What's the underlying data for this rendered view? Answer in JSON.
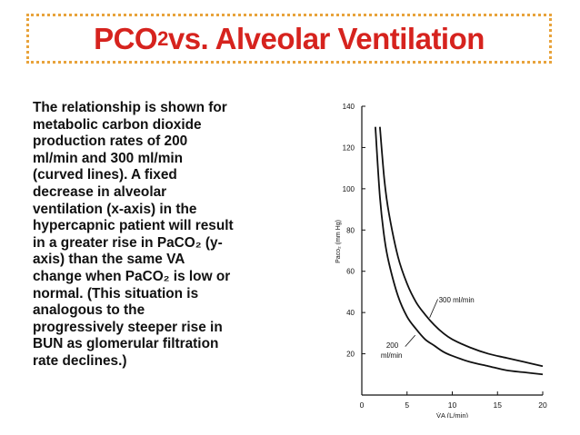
{
  "slide": {
    "title_main": "PCO",
    "title_sub": "2",
    "title_rest": " vs. Alveolar Ventilation",
    "body_text": [
      "The relationship is shown for",
      "metabolic carbon dioxide",
      "production rates of 200",
      "ml/min and 300 ml/min",
      "(curved lines).  A fixed",
      "decrease in alveolar",
      "ventilation (x-axis) in the",
      "hypercapnic patient will result",
      "in a greater rise in PaCO₂ (y-",
      "axis) than the same VA",
      "change when PaCO₂ is low or",
      "normal.  (This situation is",
      "analogous to the",
      "progressively steeper rise in",
      "BUN as glomerular filtration",
      "rate declines.)"
    ]
  },
  "colors": {
    "title": "#d6231e",
    "frame": "#e8a33b",
    "text": "#111111"
  },
  "chart_data": {
    "type": "line",
    "xlabel": "V̇A (L/min)",
    "ylabel": "Paco₂ (mm Hg)",
    "xlim": [
      0,
      20
    ],
    "ylim": [
      0,
      140
    ],
    "xticks": [
      0,
      5,
      10,
      15,
      20
    ],
    "yticks": [
      20,
      40,
      60,
      80,
      100,
      120,
      140
    ],
    "grid": false,
    "series": [
      {
        "name": "300 ml/min",
        "x": [
          2.0,
          2.5,
          3,
          4,
          5,
          6,
          7,
          8,
          9,
          10,
          12,
          14,
          16,
          18,
          20
        ],
        "y": [
          130,
          104,
          88,
          67,
          54,
          45,
          39,
          34,
          30,
          27,
          23,
          20,
          18,
          16,
          14
        ]
      },
      {
        "name": "200\nml/min",
        "x": [
          1.5,
          2,
          2.5,
          3,
          4,
          5,
          6,
          7,
          8,
          9,
          10,
          12,
          14,
          16,
          18,
          20
        ],
        "y": [
          130,
          96,
          76,
          64,
          48,
          38,
          32,
          27,
          24,
          21,
          19,
          16,
          14,
          12,
          11,
          10
        ]
      }
    ]
  }
}
